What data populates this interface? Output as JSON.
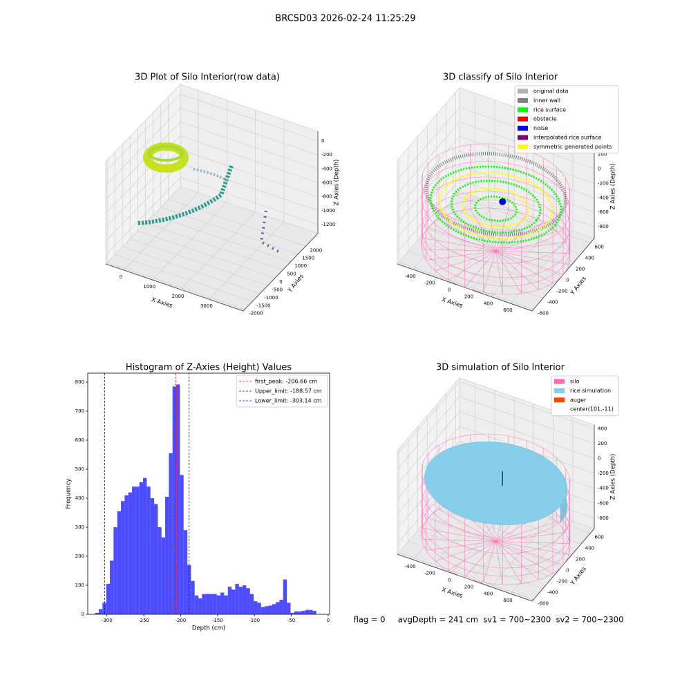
{
  "suptitle": "BRCSD03 2026-02-24 11:25:29",
  "status": "flag = 0     avgDepth = 241 cm  sv1 = 700~2300  sv2 = 700~2300",
  "chart_data": [
    {
      "type": "scatter3d",
      "title": "3D Plot of Silo Interior(row data)",
      "xlabel": "X Axies",
      "ylabel": "Y Axies",
      "zlabel": "Z Axies (Depth)",
      "xlim": [
        -630,
        4190
      ],
      "ylim": [
        -2100,
        2800
      ],
      "zlim": [
        -1330,
        140
      ],
      "xticks": [
        0,
        1000,
        2000,
        3000
      ],
      "yticks": [
        -2000,
        -1500,
        -1000,
        -500,
        0,
        500,
        1000,
        1500,
        2000
      ],
      "zticks": [
        0,
        -200,
        -400,
        -600,
        -800,
        -1000,
        -1200
      ]
    },
    {
      "type": "histogram",
      "title": "Histogram of Z-Axies (Height) Values",
      "xlabel": "Depth (cm)",
      "ylabel": "Frequency",
      "color": "#4d4dff",
      "bins": [
        -316,
        -311,
        -306,
        -301,
        -296,
        -291,
        -286,
        -281,
        -276,
        -271,
        -266,
        -261,
        -256,
        -251,
        -246,
        -241,
        -236,
        -231,
        -226,
        -221,
        -216,
        -211,
        -206,
        -201,
        -196,
        -191,
        -186,
        -181,
        -176,
        -171,
        -166,
        -161,
        -156,
        -151,
        -146,
        -141,
        -136,
        -131,
        -126,
        -121,
        -116,
        -111,
        -106,
        -101,
        -96,
        -91,
        -86,
        -81,
        -76,
        -71,
        -66,
        -61,
        -56,
        -51,
        -46,
        -41,
        -36,
        -31,
        -26,
        -21,
        -16
      ],
      "values": [
        5,
        18,
        40,
        105,
        185,
        300,
        355,
        390,
        410,
        420,
        440,
        440,
        455,
        470,
        440,
        400,
        380,
        300,
        265,
        405,
        555,
        785,
        792,
        480,
        290,
        170,
        115,
        65,
        55,
        70,
        70,
        70,
        70,
        65,
        75,
        65,
        95,
        85,
        105,
        95,
        100,
        90,
        70,
        45,
        40,
        25,
        28,
        30,
        35,
        42,
        50,
        120,
        40,
        5,
        10,
        10,
        12,
        15,
        15,
        12
      ],
      "xlim": [
        -326,
        2
      ],
      "ylim": [
        0,
        831
      ],
      "xticks": [
        -300,
        -250,
        -200,
        -150,
        -100,
        -50,
        0
      ],
      "yticks": [
        0,
        100,
        200,
        300,
        400,
        500,
        600,
        700,
        800
      ],
      "legend": "upper right",
      "lines": [
        {
          "label": "first_peak: -206.66 cm",
          "value": -206.66,
          "color": "#ff0000"
        },
        {
          "label": "Upper_limit: -188.57 cm",
          "value": -188.57,
          "color": "#0000ff"
        },
        {
          "label": "Lower_limit: -303.14 cm",
          "value": -303.14,
          "color": "#0000ff"
        }
      ]
    },
    {
      "type": "scatter3d",
      "title": "3D classify of Silo Interior",
      "xlabel": "X Axies",
      "ylabel": "Y Axies",
      "zlabel": "Z Axies (Depth)",
      "xlim": [
        -560,
        820
      ],
      "ylim": [
        -630,
        680
      ],
      "zlim": [
        -960,
        470
      ],
      "xticks": [
        -400,
        -200,
        0,
        200,
        400,
        600
      ],
      "yticks": [
        -600,
        -400,
        -200,
        0,
        200,
        400,
        600
      ],
      "zticks": [
        200,
        0,
        -200,
        -400,
        -600,
        -800
      ],
      "legend": [
        {
          "name": "original data",
          "color": "#b3b3b3"
        },
        {
          "name": "inner wall",
          "color": "#808080"
        },
        {
          "name": "rice surface",
          "color": "#00ff00"
        },
        {
          "name": "obstacle",
          "color": "#ff0000"
        },
        {
          "name": "noise",
          "color": "#0000ff"
        },
        {
          "name": "interpolated rice surface",
          "color": "#800080"
        },
        {
          "name": "symmetric generated points",
          "color": "#ffff00"
        }
      ]
    },
    {
      "type": "surface3d",
      "title": "3D simulation of Silo Interior",
      "xlabel": "X Axies",
      "ylabel": "Y Axies",
      "zlabel": "Z Axies (Depth)",
      "xlim": [
        -560,
        820
      ],
      "ylim": [
        -630,
        680
      ],
      "zlim": [
        -940,
        450
      ],
      "xticks": [
        -400,
        -200,
        0,
        200,
        400,
        600
      ],
      "yticks": [
        -600,
        -400,
        -200,
        0,
        200,
        400,
        600
      ],
      "zticks": [
        400,
        200,
        0,
        -200,
        -400,
        -600,
        -800
      ],
      "legend": [
        {
          "name": "silo",
          "color": "#ff69b4"
        },
        {
          "name": "rice simulation",
          "color": "#87ceeb"
        },
        {
          "name": "auger",
          "color": "#ff4500"
        },
        {
          "name": "center(101,-11)"
        }
      ]
    }
  ]
}
